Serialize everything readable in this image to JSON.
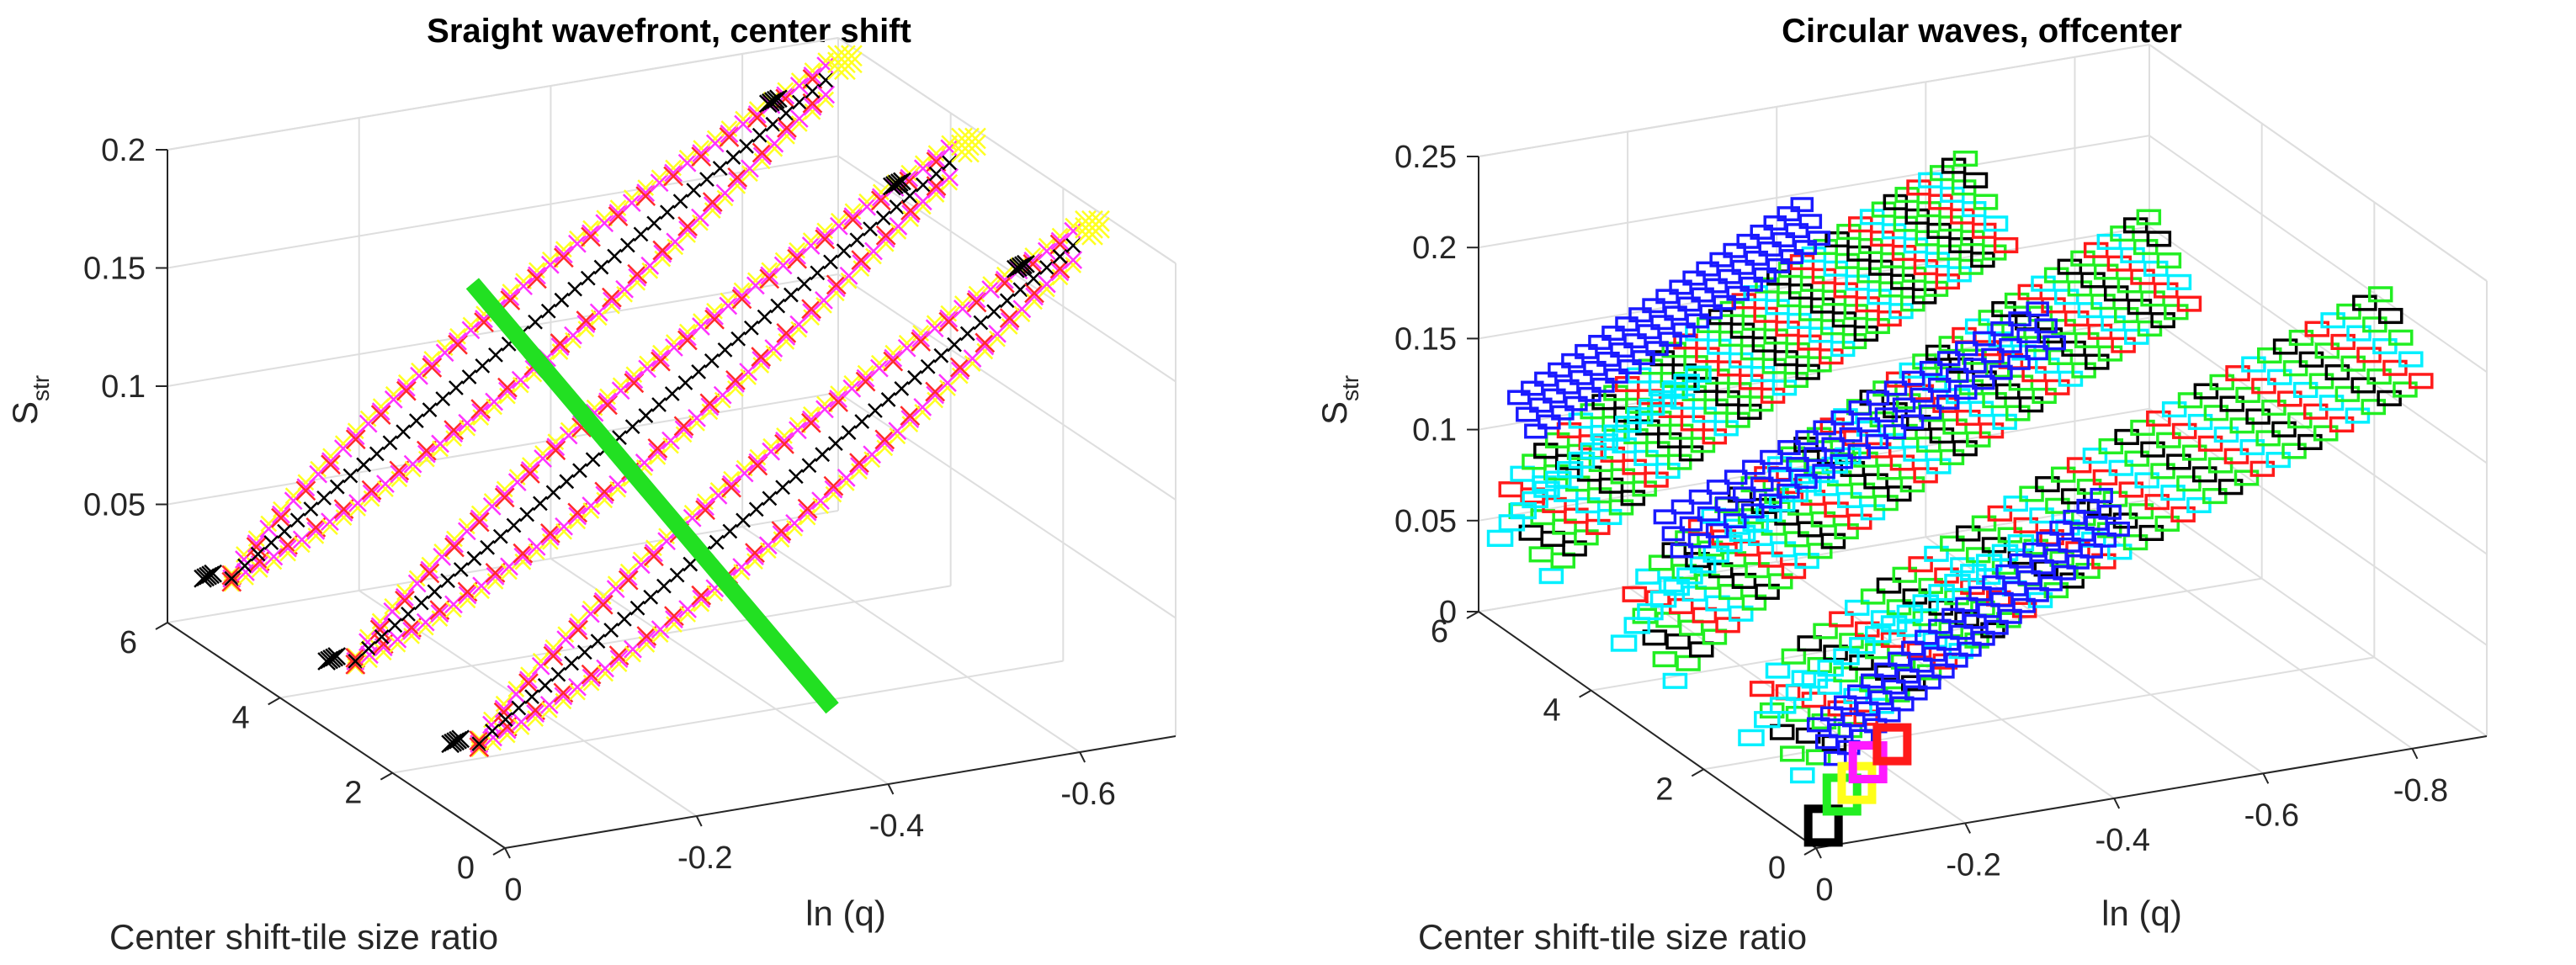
{
  "figure": {
    "panel_count": 2
  },
  "chart_data": [
    {
      "type": "scatter3d",
      "title": "Sraight wavefront, center shift",
      "xlabel": "ln (q)",
      "ylabel": "Center shift-tile size ratio",
      "zlabel": "S",
      "zlabel_subscript": "str",
      "xlim": [
        -0.7,
        0
      ],
      "ylim": [
        0,
        6
      ],
      "zlim": [
        0,
        0.2
      ],
      "x_ticks": [
        "0",
        "-0.2",
        "-0.4",
        "-0.6"
      ],
      "x_tick_values": [
        0,
        -0.2,
        -0.4,
        -0.6
      ],
      "y_ticks": [
        "0",
        "2",
        "4",
        "6"
      ],
      "y_tick_values": [
        0,
        2,
        4,
        6
      ],
      "z_ticks": [
        "0.05",
        "0.1",
        "0.15",
        "0.2"
      ],
      "z_tick_values": [
        0.05,
        0.1,
        0.15,
        0.2
      ],
      "series": [
        {
          "name": "red markers",
          "marker": "x",
          "color": "#ff2a2a"
        },
        {
          "name": "magenta markers",
          "marker": "x",
          "color": "#ff33ff"
        },
        {
          "name": "yellow markers",
          "marker": "x",
          "color": "#ffff22"
        },
        {
          "name": "black markers",
          "marker": "x",
          "color": "#000000"
        },
        {
          "name": "green line",
          "marker": "line",
          "color": "#22e022"
        }
      ],
      "loops": [
        {
          "y": 5.2,
          "x_start": -0.02,
          "x_end": -0.64,
          "z_top": 0.205,
          "z_bottom": 0.03
        },
        {
          "y": 3.0,
          "x_start": -0.02,
          "x_end": -0.64,
          "z_top": 0.205,
          "z_bottom": 0.03
        },
        {
          "y": 0.8,
          "x_start": -0.02,
          "x_end": -0.64,
          "z_top": 0.205,
          "z_bottom": 0.03
        }
      ],
      "green_line": {
        "x": -0.33,
        "y_from": 6.2,
        "y_to": -0.2,
        "z_from": 0.118,
        "z_to": 0.04
      }
    },
    {
      "type": "scatter3d",
      "title": "Circular waves, offcenter",
      "xlabel": "ln (q)",
      "ylabel": "Center shift-tile size ratio",
      "zlabel": "S",
      "zlabel_subscript": "str",
      "xlim": [
        -0.9,
        0
      ],
      "ylim": [
        0,
        6
      ],
      "zlim": [
        0,
        0.25
      ],
      "x_ticks": [
        "0",
        "-0.2",
        "-0.4",
        "-0.6",
        "-0.8"
      ],
      "x_tick_values": [
        0,
        -0.2,
        -0.4,
        -0.6,
        -0.8
      ],
      "y_ticks": [
        "0",
        "2",
        "4",
        "6"
      ],
      "y_tick_values": [
        0,
        2,
        4,
        6
      ],
      "z_ticks": [
        "0",
        "0.05",
        "0.1",
        "0.15",
        "0.2",
        "0.25"
      ],
      "z_tick_values": [
        0,
        0.05,
        0.1,
        0.15,
        0.2,
        0.25
      ],
      "series": [
        {
          "name": "green markers",
          "marker": "square",
          "color": "#22ee22"
        },
        {
          "name": "cyan markers",
          "marker": "square",
          "color": "#00f0ff"
        },
        {
          "name": "blue markers",
          "marker": "square",
          "color": "#1a1aff"
        },
        {
          "name": "black markers",
          "marker": "square",
          "color": "#000000"
        },
        {
          "name": "red markers",
          "marker": "square",
          "color": "#ff1a1a"
        },
        {
          "name": "magenta markers",
          "marker": "square",
          "color": "#ff1aff"
        },
        {
          "name": "yellow markers",
          "marker": "square",
          "color": "#ffff1a"
        }
      ],
      "bands": [
        {
          "y": 5.2,
          "x_start": -0.01,
          "x_end": -0.62,
          "z_low": 0.06,
          "z_high": 0.2
        },
        {
          "y": 3.0,
          "x_start": -0.01,
          "x_end": -0.7,
          "z_low": 0.05,
          "z_high": 0.21
        },
        {
          "y": 1.0,
          "x_start": -0.03,
          "x_end": -0.86,
          "z_low": 0.04,
          "z_high": 0.2
        }
      ],
      "blue_arms": [
        {
          "y": 5.4,
          "x_start": -0.02,
          "x_end": -0.4,
          "z_start": 0.12,
          "z_end": 0.2
        },
        {
          "y": 3.2,
          "x_start": -0.05,
          "x_end": -0.55,
          "z_start": 0.1,
          "z_end": 0.18
        },
        {
          "y": 1.4,
          "x_start": -0.12,
          "x_end": -0.5,
          "z_start": 0.02,
          "z_end": 0.12
        }
      ],
      "bottom_markers": [
        {
          "x": -0.04,
          "y": 0.4,
          "z": 0.0,
          "color": "#000000"
        },
        {
          "x": -0.08,
          "y": 0.6,
          "z": 0.01,
          "color": "#22ee22"
        },
        {
          "x": -0.1,
          "y": 0.6,
          "z": 0.015,
          "color": "#ffff1a"
        },
        {
          "x": -0.13,
          "y": 0.8,
          "z": 0.02,
          "color": "#ff1aff"
        },
        {
          "x": -0.17,
          "y": 0.9,
          "z": 0.025,
          "color": "#ff1a1a"
        }
      ]
    }
  ]
}
